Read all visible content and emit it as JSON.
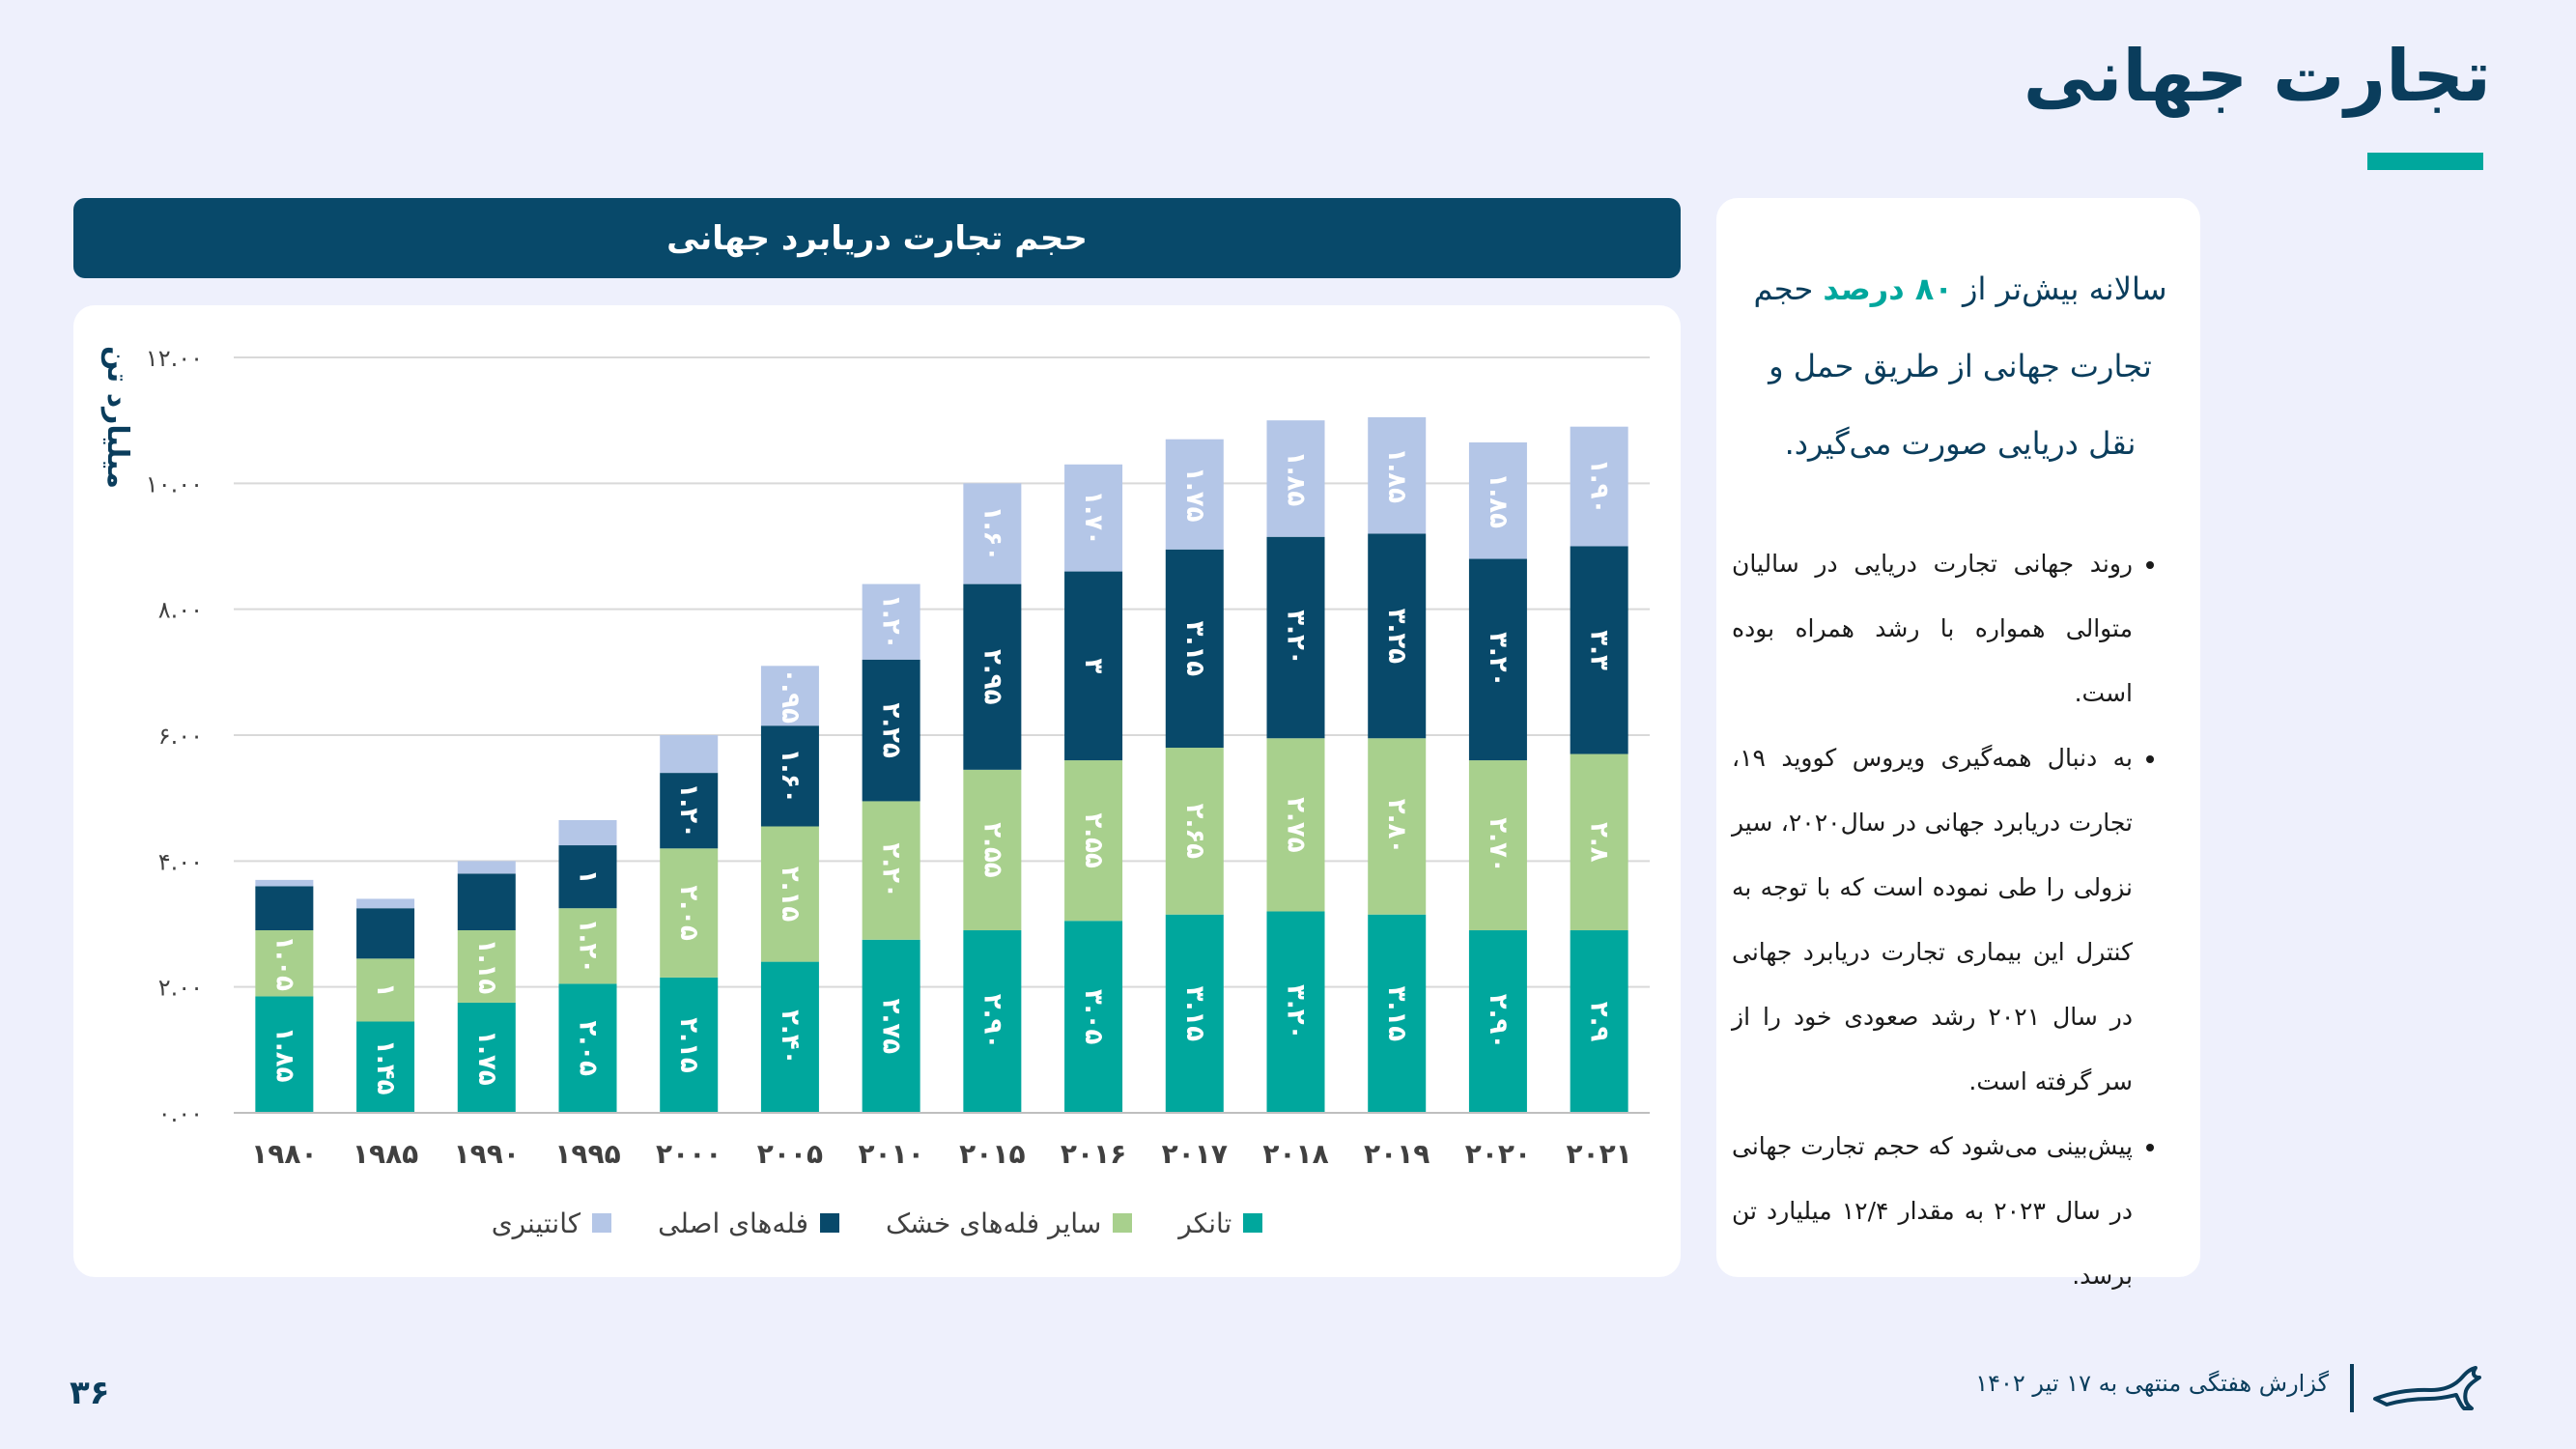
{
  "page": {
    "title": "تجارت جهانی",
    "page_number": "۳۶",
    "footer_text": "گزارش هفتگی منتهی به ۱۷ تیر ۱۴۰۲"
  },
  "chart_header": "حجم تجارت دریابرد جهانی",
  "sidebar": {
    "intro_pre": "سالانه بیش‌تر از ",
    "intro_highlight": "۸۰ درصد",
    "intro_post": " حجم تجارت جهانی از طریق حمل و نقل دریایی صورت می‌گیرد.",
    "bullets": [
      "روند جهانی تجارت دریایی در سالیان متوالی همواره با رشد همراه بوده است.",
      "به دنبال همه‌گیری ویروس کووید ۱۹، تجارت دریابرد جهانی در سال۲۰۲۰، سیر نزولی را طی نموده است که با توجه به کنترل این بیماری تجارت دریابرد جهانی در سال ۲۰۲۱ رشد صعودی خود را از سر گرفته است.",
      "پیش‌بینی می‌شود که حجم تجارت جهانی در سال ۲۰۲۳ به مقدار ۱۲/۴ میلیارد تن برسد."
    ]
  },
  "colors": {
    "tanker": "#00a79d",
    "dry_bulk_other": "#a8d08d",
    "main_bulk": "#08496a",
    "container": "#b4c6e7",
    "accent": "#00a79d",
    "header_bg": "#08496a"
  },
  "chart_data": {
    "type": "bar",
    "stacked": true,
    "ylabel": "میلیارد تن",
    "ylim": [
      0,
      12
    ],
    "yticks": [
      "۰.۰۰",
      "۲.۰۰",
      "۴.۰۰",
      "۶.۰۰",
      "۸.۰۰",
      "۱۰.۰۰",
      "۱۲.۰۰"
    ],
    "categories": [
      "۱۹۸۰",
      "۱۹۸۵",
      "۱۹۹۰",
      "۱۹۹۵",
      "۲۰۰۰",
      "۲۰۰۵",
      "۲۰۱۰",
      "۲۰۱۵",
      "۲۰۱۶",
      "۲۰۱۷",
      "۲۰۱۸",
      "۲۰۱۹",
      "۲۰۲۰",
      "۲۰۲۱"
    ],
    "legend_position": "bottom",
    "grid": true,
    "series": [
      {
        "name": "تانکر",
        "color": "#00a79d",
        "values": [
          1.85,
          1.45,
          1.75,
          2.05,
          2.15,
          2.4,
          2.75,
          2.9,
          3.05,
          3.15,
          3.2,
          3.15,
          2.9,
          2.9
        ],
        "labels": [
          "۱.۸۵",
          "۱.۴۵",
          "۱.۷۵",
          "۲.۰۵",
          "۲.۱۵",
          "۲.۴۰",
          "۲.۷۵",
          "۲.۹۰",
          "۳.۰۵",
          "۳.۱۵",
          "۳.۲۰",
          "۳.۱۵",
          "۲.۹۰",
          "۲.۹"
        ]
      },
      {
        "name": "سایر فله‌های خشک",
        "color": "#a8d08d",
        "values": [
          1.05,
          1,
          1.15,
          1.2,
          2.05,
          2.15,
          2.2,
          2.55,
          2.55,
          2.65,
          2.75,
          2.8,
          2.7,
          2.8
        ],
        "labels": [
          "۱.۰۵",
          "۱",
          "۱.۱۵",
          "۱.۲۰",
          "۲.۰۵",
          "۲.۱۵",
          "۲.۲۰",
          "۲.۵۵",
          "۲.۵۵",
          "۲.۶۵",
          "۲.۷۵",
          "۲.۸۰",
          "۲.۷۰",
          "۲.۸"
        ]
      },
      {
        "name": "فله‌های اصلی",
        "color": "#08496a",
        "values": [
          0.7,
          0.8,
          0.9,
          1,
          1.2,
          1.6,
          2.25,
          2.95,
          3,
          3.15,
          3.2,
          3.25,
          3.2,
          3.3
        ],
        "labels": [
          "",
          "",
          "",
          "۱",
          "۱.۲۰",
          "۱.۶۰",
          "۲.۲۵",
          "۲.۹۵",
          "۳",
          "۳.۱۵",
          "۳.۲۰",
          "۳.۲۵",
          "۳.۲۰",
          "۳.۳"
        ]
      },
      {
        "name": "کانتینری",
        "color": "#b4c6e7",
        "values": [
          0.1,
          0.15,
          0.2,
          0.4,
          0.6,
          0.95,
          1.2,
          1.6,
          1.7,
          1.75,
          1.85,
          1.85,
          1.85,
          1.9
        ],
        "labels": [
          "",
          "",
          "",
          "",
          "",
          "۰.۹۵",
          "۱.۲۰",
          "۱.۶۰",
          "۱.۷۰",
          "۱.۷۵",
          "۱.۸۵",
          "۱.۸۵",
          "۱.۸۵",
          "۱.۹۰"
        ]
      }
    ]
  }
}
